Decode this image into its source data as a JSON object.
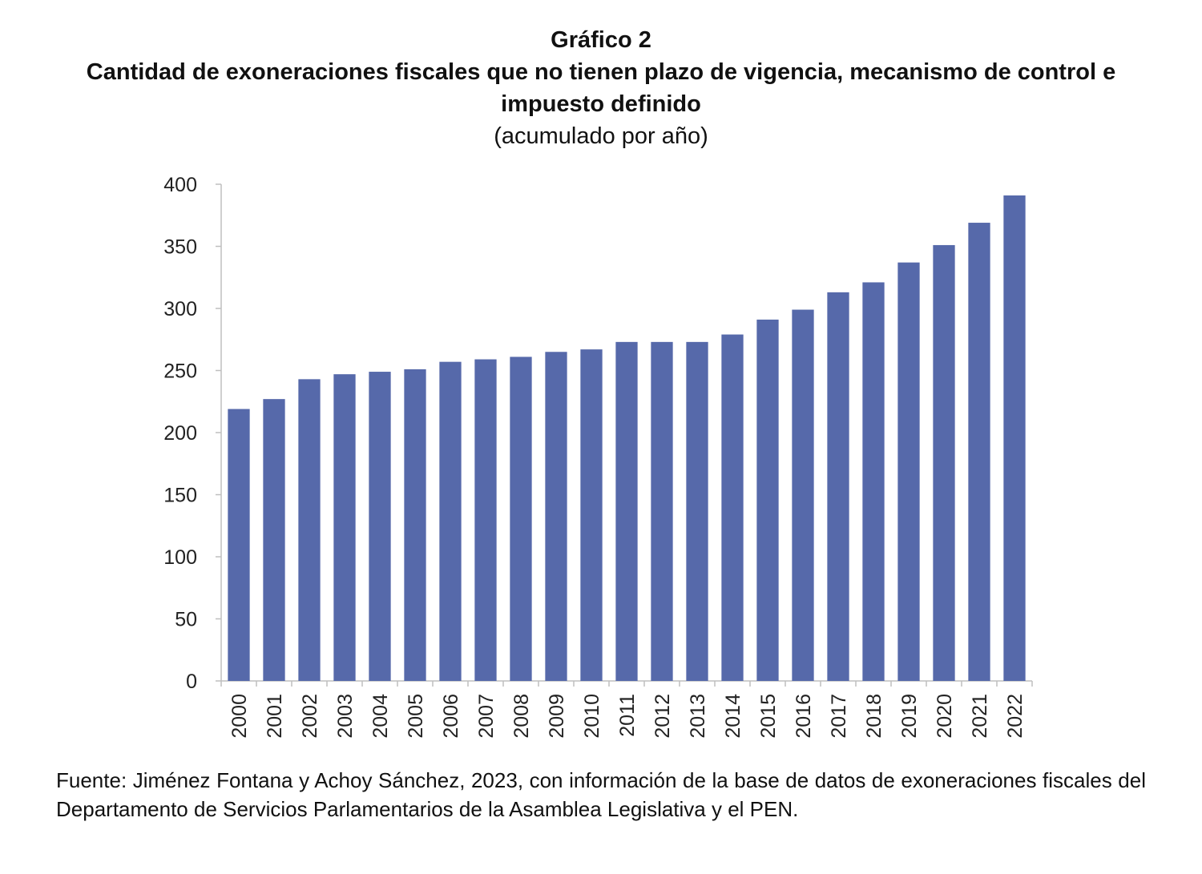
{
  "header": {
    "label": "Gráfico 2",
    "title": "Cantidad de exoneraciones fiscales que no tienen plazo de vigencia, mecanismo de control e impuesto definido",
    "subtitle": "(acumulado por año)"
  },
  "chart_data": {
    "type": "bar",
    "categories": [
      "2000",
      "2001",
      "2002",
      "2003",
      "2004",
      "2005",
      "2006",
      "2007",
      "2008",
      "2009",
      "2010",
      "2011",
      "2012",
      "2013",
      "2014",
      "2015",
      "2016",
      "2017",
      "2018",
      "2019",
      "2020",
      "2021",
      "2022"
    ],
    "values": [
      219,
      227,
      243,
      247,
      249,
      251,
      257,
      259,
      261,
      265,
      267,
      273,
      273,
      273,
      279,
      291,
      299,
      313,
      321,
      337,
      351,
      369,
      391
    ],
    "ylim": [
      0,
      400
    ],
    "yticks": [
      0,
      50,
      100,
      150,
      200,
      250,
      300,
      350,
      400
    ],
    "bar_color": "#5669aa",
    "grid": false,
    "legend": "none"
  },
  "source": {
    "text": "Fuente: Jiménez Fontana y Achoy Sánchez, 2023, con información de la base de datos de exoneraciones fiscales del Departamento de Servicios Parlamentarios de la Asamblea Legislativa y el PEN."
  }
}
